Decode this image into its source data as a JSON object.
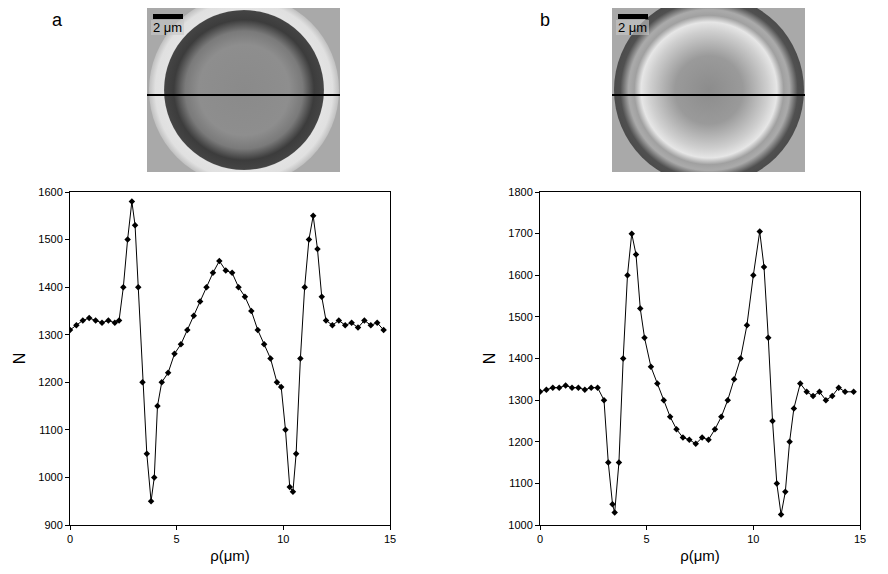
{
  "chart_data": [
    {
      "type": "line",
      "panel_label": "a",
      "scale_bar_label": "2 μm",
      "x_label": "ρ(μm)",
      "y_label": "N",
      "color": "#000000",
      "marker": "diamond",
      "line_style": "solid",
      "grid": false,
      "xlim": [
        0,
        15
      ],
      "xticks": [
        0,
        5,
        10,
        15
      ],
      "ylim": [
        900,
        1600
      ],
      "yticks": [
        900,
        1000,
        1100,
        1200,
        1300,
        1400,
        1500,
        1600
      ],
      "x": [
        0,
        0.3,
        0.6,
        0.9,
        1.2,
        1.5,
        1.8,
        2.1,
        2.3,
        2.5,
        2.7,
        2.9,
        3.05,
        3.2,
        3.4,
        3.6,
        3.8,
        3.95,
        4.1,
        4.3,
        4.6,
        4.9,
        5.2,
        5.5,
        5.8,
        6.1,
        6.4,
        6.7,
        7.0,
        7.3,
        7.6,
        7.9,
        8.2,
        8.5,
        8.8,
        9.1,
        9.4,
        9.7,
        9.9,
        10.1,
        10.3,
        10.45,
        10.6,
        10.8,
        11.0,
        11.2,
        11.4,
        11.6,
        11.8,
        12.0,
        12.3,
        12.6,
        12.9,
        13.2,
        13.5,
        13.8,
        14.1,
        14.4,
        14.7
      ],
      "values": [
        1310,
        1320,
        1330,
        1335,
        1330,
        1325,
        1330,
        1325,
        1330,
        1400,
        1500,
        1580,
        1530,
        1400,
        1200,
        1050,
        950,
        1000,
        1150,
        1200,
        1220,
        1260,
        1280,
        1310,
        1340,
        1370,
        1400,
        1430,
        1455,
        1435,
        1430,
        1400,
        1380,
        1350,
        1310,
        1280,
        1250,
        1200,
        1190,
        1100,
        980,
        970,
        1050,
        1250,
        1400,
        1500,
        1550,
        1480,
        1380,
        1330,
        1320,
        1330,
        1320,
        1325,
        1315,
        1330,
        1320,
        1325,
        1310
      ]
    },
    {
      "type": "line",
      "panel_label": "b",
      "scale_bar_label": "2 μm",
      "x_label": "ρ(μm)",
      "y_label": "N",
      "color": "#000000",
      "marker": "diamond",
      "line_style": "solid",
      "grid": false,
      "xlim": [
        0,
        15
      ],
      "xticks": [
        0,
        5,
        10,
        15
      ],
      "ylim": [
        1000,
        1800
      ],
      "yticks": [
        1000,
        1100,
        1200,
        1300,
        1400,
        1500,
        1600,
        1700,
        1800
      ],
      "x": [
        0,
        0.3,
        0.6,
        0.9,
        1.2,
        1.5,
        1.8,
        2.1,
        2.4,
        2.7,
        3.0,
        3.2,
        3.4,
        3.5,
        3.7,
        3.9,
        4.1,
        4.3,
        4.5,
        4.7,
        4.9,
        5.2,
        5.5,
        5.8,
        6.1,
        6.4,
        6.7,
        7.0,
        7.3,
        7.6,
        7.9,
        8.2,
        8.5,
        8.8,
        9.1,
        9.4,
        9.7,
        10.0,
        10.3,
        10.5,
        10.7,
        10.9,
        11.1,
        11.3,
        11.5,
        11.7,
        11.9,
        12.2,
        12.5,
        12.8,
        13.1,
        13.4,
        13.7,
        14.0,
        14.3,
        14.7
      ],
      "values": [
        1320,
        1325,
        1330,
        1330,
        1335,
        1330,
        1330,
        1325,
        1330,
        1330,
        1300,
        1150,
        1050,
        1030,
        1150,
        1400,
        1600,
        1700,
        1650,
        1520,
        1450,
        1380,
        1340,
        1300,
        1260,
        1230,
        1210,
        1205,
        1195,
        1210,
        1205,
        1230,
        1260,
        1300,
        1350,
        1400,
        1480,
        1600,
        1705,
        1620,
        1450,
        1250,
        1100,
        1025,
        1080,
        1200,
        1280,
        1340,
        1320,
        1310,
        1320,
        1300,
        1310,
        1330,
        1320,
        1320
      ]
    }
  ]
}
